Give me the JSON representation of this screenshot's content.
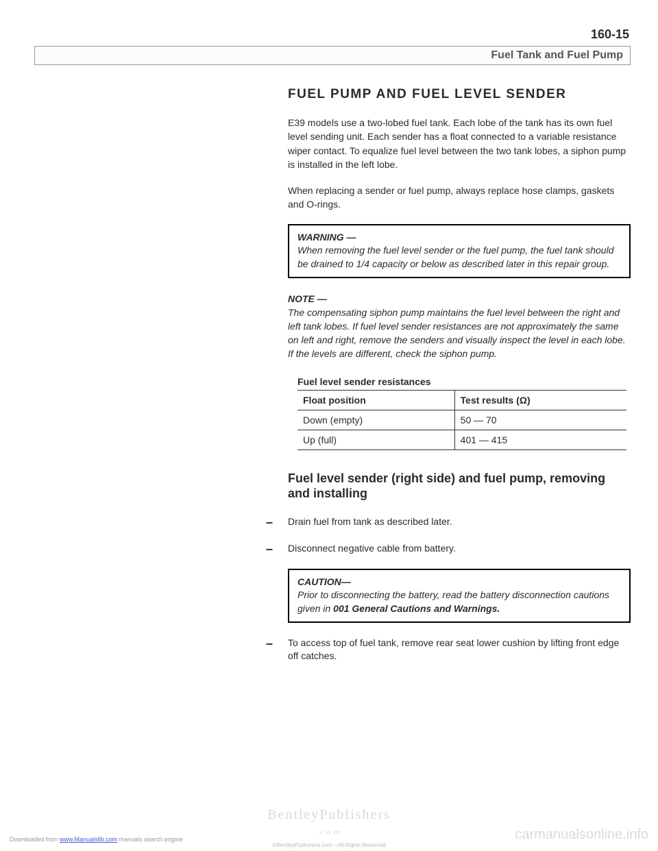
{
  "pageNumber": "160-15",
  "headerTitle": "Fuel Tank and Fuel Pump",
  "sectionTitle": "FUEL PUMP AND FUEL LEVEL SENDER",
  "para1": "E39 models use a two-lobed fuel tank. Each lobe of the tank has its own fuel level sending unit. Each sender has a float connected to a variable resistance wiper contact. To equalize fuel level between the two tank lobes, a siphon pump is installed in the left lobe.",
  "para2": "When replacing a sender or fuel pump, always replace hose clamps, gaskets and O-rings.",
  "warning": {
    "heading": "WARNING —",
    "body": "When removing the fuel level sender or the fuel pump, the fuel tank should be drained to 1/4 capacity or below as described later in this repair group."
  },
  "note": {
    "heading": "NOTE —",
    "body": "The compensating siphon pump maintains the fuel level between the right and left tank lobes. If fuel level sender resistances are not approximately the same on left and right, remove the senders and visually inspect the level in each lobe. If the levels are different, check the siphon pump."
  },
  "table": {
    "caption": "Fuel level sender resistances",
    "headers": [
      "Float position",
      "Test results (Ω)"
    ],
    "rows": [
      [
        "Down (empty)",
        "50 — 70"
      ],
      [
        "Up (full)",
        "401 — 415"
      ]
    ]
  },
  "subHeading": "Fuel level sender (right side) and fuel pump, removing and installing",
  "steps": [
    "Drain fuel from tank as described later.",
    "Disconnect negative cable from battery."
  ],
  "caution": {
    "heading": "CAUTION—",
    "bodyPrefix": "Prior to disconnecting the battery, read the battery disconnection cautions given in ",
    "bodyBold": "001 General Cautions and Warnings.",
    "bodySuffix": ""
  },
  "step3": "To access top of fuel tank, remove rear seat lower cushion by lifting front edge off catches.",
  "watermarks": {
    "publisher": "BentleyPublishers",
    "publisherSub": ".com",
    "copyright": "©BentleyPublishers.com—All Rights Reserved",
    "right": "carmanualsonline.info",
    "leftPrefix": "Downloaded from ",
    "leftLink": "www.Manualslib.com",
    "leftSuffix": " manuals search engine"
  }
}
